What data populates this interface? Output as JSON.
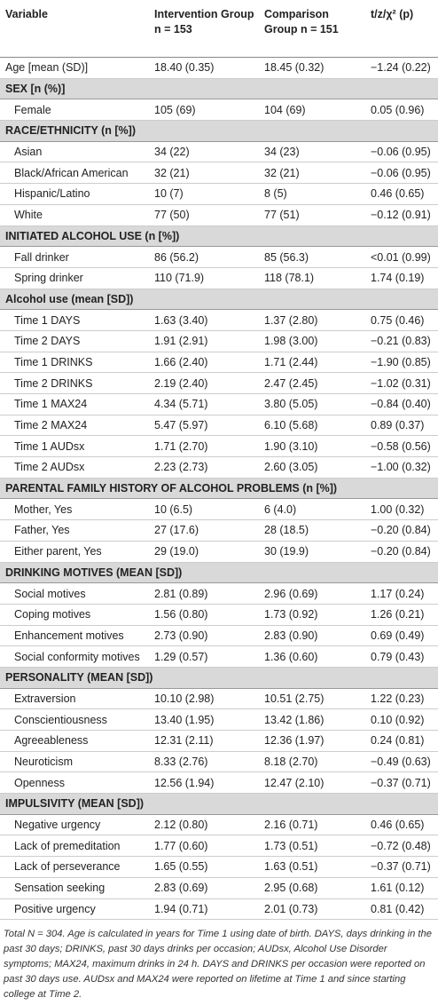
{
  "table": {
    "header": [
      "Variable",
      "Intervention Group n = 153",
      "Comparison Group n = 151",
      "t/z/χ² (p)"
    ],
    "rows": [
      [
        "Age [mean (SD)]",
        "18.40 (0.35)",
        "18.45 (0.32)",
        "−1.24 (0.22)"
      ],
      [
        "SEX [n (%)]"
      ],
      [
        "Female",
        "105 (69)",
        "104 (69)",
        "0.05 (0.96)"
      ],
      [
        "RACE/ETHNICITY (n [%])"
      ],
      [
        "Asian",
        "34 (22)",
        "34 (23)",
        "−0.06 (0.95)"
      ],
      [
        "Black/African American",
        "32 (21)",
        "32 (21)",
        "−0.06 (0.95)"
      ],
      [
        "Hispanic/Latino",
        "10 (7)",
        "8 (5)",
        "0.46 (0.65)"
      ],
      [
        "White",
        "77 (50)",
        "77 (51)",
        "−0.12 (0.91)"
      ],
      [
        "INITIATED ALCOHOL USE (n [%])"
      ],
      [
        "Fall drinker",
        "86 (56.2)",
        "85 (56.3)",
        "<0.01 (0.99)"
      ],
      [
        "Spring drinker",
        "110 (71.9)",
        "118 (78.1)",
        "1.74 (0.19)"
      ],
      [
        "Alcohol use (mean [SD])"
      ],
      [
        "Time 1 DAYS",
        "1.63 (3.40)",
        "1.37 (2.80)",
        "0.75 (0.46)"
      ],
      [
        "Time 2 DAYS",
        "1.91 (2.91)",
        "1.98 (3.00)",
        "−0.21 (0.83)"
      ],
      [
        "Time 1 DRINKS",
        "1.66 (2.40)",
        "1.71 (2.44)",
        "−1.90 (0.85)"
      ],
      [
        "Time 2 DRINKS",
        "2.19 (2.40)",
        "2.47 (2.45)",
        "−1.02 (0.31)"
      ],
      [
        "Time 1 MAX24",
        "4.34 (5.71)",
        "3.80 (5.05)",
        "−0.84 (0.40)"
      ],
      [
        "Time 2 MAX24",
        "5.47 (5.97)",
        "6.10 (5.68)",
        "0.89 (0.37)"
      ],
      [
        "Time 1 AUDsx",
        "1.71 (2.70)",
        "1.90 (3.10)",
        "−0.58 (0.56)"
      ],
      [
        "Time 2 AUDsx",
        "2.23 (2.73)",
        "2.60 (3.05)",
        "−1.00 (0.32)"
      ],
      [
        "PARENTAL FAMILY HISTORY OF ALCOHOL PROBLEMS (n [%])"
      ],
      [
        "Mother, Yes",
        "10 (6.5)",
        "6 (4.0)",
        "1.00 (0.32)"
      ],
      [
        "Father, Yes",
        "27 (17.6)",
        "28 (18.5)",
        "−0.20 (0.84)"
      ],
      [
        "Either parent, Yes",
        "29 (19.0)",
        "30 (19.9)",
        "−0.20 (0.84)"
      ],
      [
        "DRINKING MOTIVES (MEAN [SD])"
      ],
      [
        "Social motives",
        "2.81 (0.89)",
        "2.96 (0.69)",
        "1.17 (0.24)"
      ],
      [
        "Coping motives",
        "1.56 (0.80)",
        "1.73 (0.92)",
        "1.26 (0.21)"
      ],
      [
        "Enhancement motives",
        "2.73 (0.90)",
        "2.83 (0.90)",
        "0.69 (0.49)"
      ],
      [
        "Social conformity motives",
        "1.29 (0.57)",
        "1.36 (0.60)",
        "0.79 (0.43)"
      ],
      [
        "PERSONALITY (MEAN [SD])"
      ],
      [
        "Extraversion",
        "10.10 (2.98)",
        "10.51 (2.75)",
        "1.22 (0.23)"
      ],
      [
        "Conscientiousness",
        "13.40 (1.95)",
        "13.42 (1.86)",
        "0.10 (0.92)"
      ],
      [
        "Agreeableness",
        "12.31 (2.11)",
        "12.36 (1.97)",
        "0.24 (0.81)"
      ],
      [
        "Neuroticism",
        "8.33 (2.76)",
        "8.18 (2.70)",
        "−0.49 (0.63)"
      ],
      [
        "Openness",
        "12.56 (1.94)",
        "12.47 (2.10)",
        "−0.37 (0.71)"
      ],
      [
        "IMPULSIVITY (MEAN [SD])"
      ],
      [
        "Negative urgency",
        "2.12 (0.80)",
        "2.16 (0.71)",
        "0.46 (0.65)"
      ],
      [
        "Lack of premeditation",
        "1.77 (0.60)",
        "1.73 (0.51)",
        "−0.72 (0.48)"
      ],
      [
        "Lack of perseverance",
        "1.65 (0.55)",
        "1.63 (0.51)",
        "−0.37 (0.71)"
      ],
      [
        "Sensation seeking",
        "2.83 (0.69)",
        "2.95 (0.68)",
        "1.61 (0.12)"
      ],
      [
        "Positive urgency",
        "1.94 (0.71)",
        "2.01 (0.73)",
        "0.81 (0.42)"
      ]
    ],
    "footnote": "Total N = 304. Age is calculated in years for Time 1 using date of birth. DAYS, days drinking in the past 30 days; DRINKS, past 30 days drinks per occasion; AUDsx, Alcohol Use Disorder symptoms; MAX24, maximum drinks in 24 h. DAYS and DRINKS per occasion were reported on past 30 days use. AUDsx and MAX24 were reported on lifetime at Time 1 and since starting college at Time 2."
  }
}
